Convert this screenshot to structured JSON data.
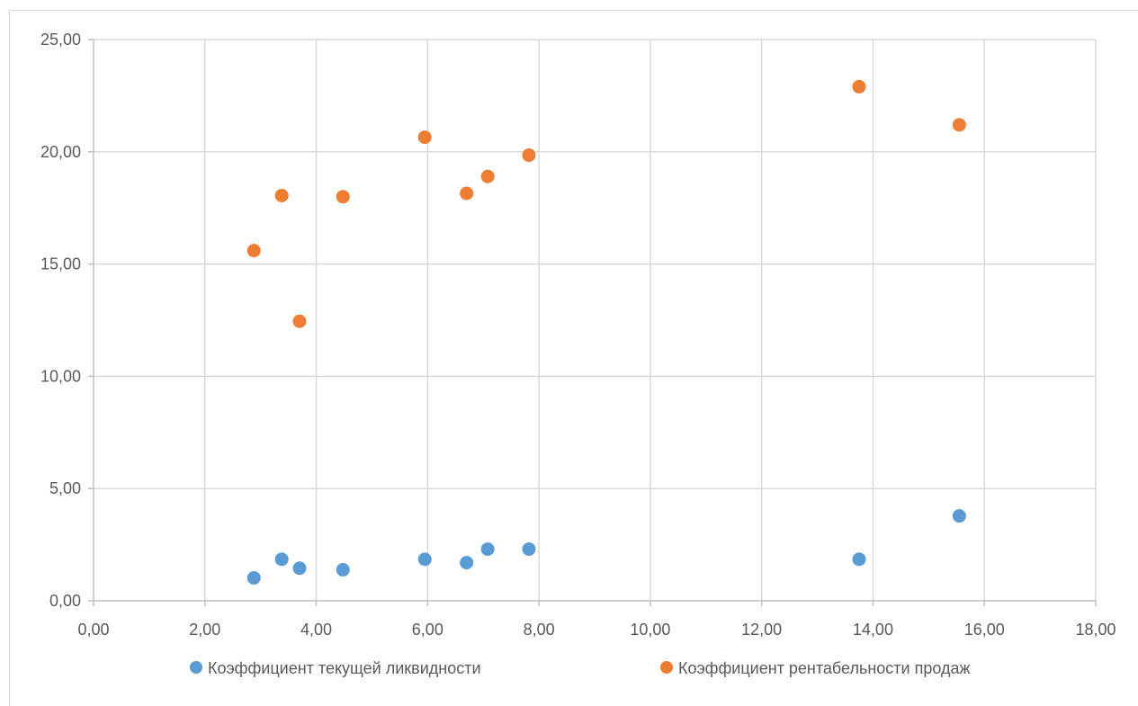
{
  "chart_data": {
    "type": "scatter",
    "title": "",
    "xlabel": "",
    "ylabel": "",
    "xlim": [
      0,
      18
    ],
    "ylim": [
      0,
      25
    ],
    "x_ticks": [
      "0,00",
      "2,00",
      "4,00",
      "6,00",
      "8,00",
      "10,00",
      "12,00",
      "14,00",
      "16,00",
      "18,00"
    ],
    "y_ticks": [
      "0,00",
      "5,00",
      "10,00",
      "15,00",
      "20,00",
      "25,00"
    ],
    "grid": true,
    "legend_position": "bottom",
    "series": [
      {
        "name": "Коэффициент текущей ликвидности",
        "color": "#5b9bd5",
        "points": [
          {
            "x": 2.88,
            "y": 1.02
          },
          {
            "x": 3.38,
            "y": 1.85
          },
          {
            "x": 3.7,
            "y": 1.45
          },
          {
            "x": 4.48,
            "y": 1.38
          },
          {
            "x": 5.95,
            "y": 1.85
          },
          {
            "x": 6.7,
            "y": 1.7
          },
          {
            "x": 7.08,
            "y": 2.3
          },
          {
            "x": 7.82,
            "y": 2.3
          },
          {
            "x": 13.75,
            "y": 1.85
          },
          {
            "x": 15.55,
            "y": 3.78
          }
        ]
      },
      {
        "name": "Коэффициент рентабельности продаж",
        "color": "#ed7d31",
        "points": [
          {
            "x": 2.88,
            "y": 15.6
          },
          {
            "x": 3.38,
            "y": 18.05
          },
          {
            "x": 3.7,
            "y": 12.45
          },
          {
            "x": 4.48,
            "y": 18.0
          },
          {
            "x": 5.95,
            "y": 20.65
          },
          {
            "x": 6.7,
            "y": 18.15
          },
          {
            "x": 7.08,
            "y": 18.9
          },
          {
            "x": 7.82,
            "y": 19.85
          },
          {
            "x": 13.75,
            "y": 22.9
          },
          {
            "x": 15.55,
            "y": 21.2
          }
        ]
      }
    ]
  }
}
